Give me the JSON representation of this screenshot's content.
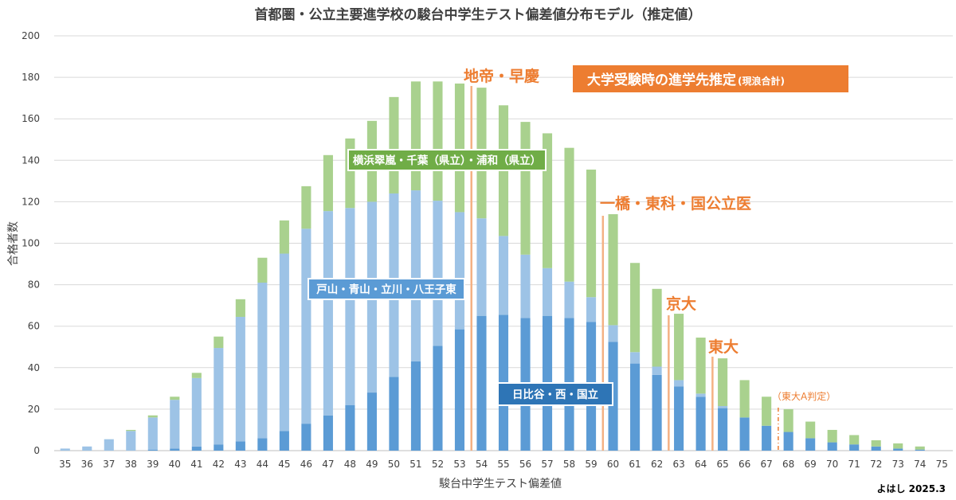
{
  "chart_data": {
    "type": "bar",
    "stacked": true,
    "title": "首都圏・公立主要進学校の駿台中学生テスト偏差値分布モデル（推定値）",
    "xlabel": "駿台中学生テスト偏差値",
    "ylabel": "合格者数",
    "ylim": [
      0,
      200
    ],
    "yticks": [
      0,
      20,
      40,
      60,
      80,
      100,
      120,
      140,
      160,
      180,
      200
    ],
    "grid": true,
    "x": [
      "35",
      "36",
      "37",
      "38",
      "39",
      "40",
      "41",
      "42",
      "43",
      "44",
      "45",
      "46",
      "47",
      "48",
      "49",
      "50",
      "51",
      "52",
      "53",
      "54",
      "55",
      "56",
      "57",
      "58",
      "59",
      "60",
      "61",
      "62",
      "63",
      "64",
      "65",
      "66",
      "67",
      "68",
      "69",
      "70",
      "71",
      "72",
      "73",
      "74",
      "75"
    ],
    "series": [
      {
        "name": "日比谷・西・国立",
        "color": "#5B9BD5",
        "values": [
          0,
          0,
          0,
          0,
          0.5,
          1,
          2,
          3,
          4.5,
          6,
          9.5,
          13,
          17,
          22,
          28,
          35.5,
          43,
          50.5,
          58.5,
          65,
          65.5,
          64,
          65,
          64,
          62,
          52.5,
          42,
          36.5,
          31,
          26,
          20.5,
          16,
          12,
          9,
          6,
          4,
          3,
          2,
          1,
          0.5,
          0
        ]
      },
      {
        "name": "戸山・青山・立川・八王子東",
        "color": "#9DC3E6",
        "values": [
          1,
          2,
          5.5,
          9.5,
          15.5,
          23.5,
          33,
          46.5,
          60,
          75,
          85.5,
          94,
          98.5,
          95,
          92,
          88.5,
          82.5,
          70,
          56.5,
          47,
          38,
          30.5,
          23,
          17.5,
          12,
          8,
          5.5,
          4,
          3,
          1.5,
          1,
          0,
          0,
          0,
          0,
          0,
          0,
          0,
          0,
          0,
          0
        ]
      },
      {
        "name": "横浜翠嵐・千葉（県立）・浦和（県立）",
        "color": "#A9D18E",
        "values": [
          0,
          0,
          0,
          0.5,
          1,
          1.5,
          2.5,
          5.5,
          8.5,
          12,
          16,
          20.5,
          27,
          33.5,
          39,
          46.5,
          52.5,
          57.5,
          62,
          63,
          63,
          64,
          65,
          64.5,
          61.5,
          53.5,
          43,
          37.5,
          32,
          27,
          23,
          18,
          14,
          11,
          8,
          6,
          4.5,
          3,
          2.5,
          1.5,
          0
        ]
      }
    ],
    "annotations": [
      {
        "text": "地帝・早慶",
        "at_x": "54"
      },
      {
        "text": "一橋・東科・国公立医",
        "at_x": "60"
      },
      {
        "text": "京大",
        "at_x": "63"
      },
      {
        "text": "東大",
        "at_x": "65"
      },
      {
        "text": "（東大A判定）",
        "at_x": "68"
      }
    ],
    "boxes": {
      "suisen": "大学受験時の進学先推定",
      "suisen_sub": "(現浪合計)",
      "green": "横浜翠嵐・千葉（県立）・浦和（県立）",
      "lightblue": "戸山・青山・立川・八王子東",
      "blue": "日比谷・西・国立"
    },
    "credit": "よはし 2025.3"
  }
}
